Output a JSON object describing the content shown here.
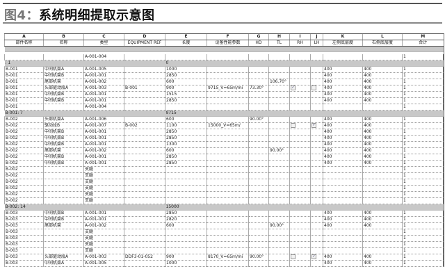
{
  "title": {
    "prefix": "图4：",
    "text": "系统明细提取示意图"
  },
  "columns": {
    "letters": [
      "A",
      "B",
      "C",
      "D",
      "E",
      "F",
      "G",
      "H",
      "I",
      "J",
      "K",
      "L",
      "M"
    ],
    "names": [
      "部件名称",
      "名称",
      "类型",
      "EQUIPMENT REF",
      "长度",
      "设备性能参数",
      "HD",
      "TL",
      "RH",
      "LH",
      "左侧底层度",
      "右侧底层度",
      "合计"
    ]
  },
  "sections": [
    {
      "type": "band",
      "label": "",
      "value": ""
    },
    {
      "type": "row",
      "cells": [
        "",
        "",
        "A-001-004",
        "",
        "",
        "",
        "",
        "",
        "",
        "",
        "",
        "",
        "1"
      ]
    },
    {
      "type": "band",
      "label": ": 1",
      "value": "0"
    },
    {
      "type": "row",
      "cells": [
        "B-001",
        "中间机架A",
        "A-001-005",
        "",
        "1000",
        "",
        "",
        "",
        "",
        "",
        "400",
        "400",
        "1"
      ]
    },
    {
      "type": "row",
      "cells": [
        "B-001",
        "中间机架B",
        "A-001-001",
        "",
        "2850",
        "",
        "",
        "",
        "",
        "",
        "400",
        "400",
        "1"
      ]
    },
    {
      "type": "row",
      "cells": [
        "B-001",
        "尾部机架",
        "A-001-002",
        "",
        "600",
        "",
        "",
        "106.70°",
        "",
        "",
        "400",
        "400",
        "1"
      ]
    },
    {
      "type": "row",
      "cells": [
        "B-001",
        "头部驱动段A",
        "A-001-003",
        "B-001",
        "900",
        "9715_V=65m/mi",
        "73.30°",
        "",
        "checked",
        "unchecked",
        "400",
        "400",
        "1"
      ]
    },
    {
      "type": "row",
      "cells": [
        "B-001",
        "中间机架B",
        "A-001-001",
        "",
        "1515",
        "",
        "",
        "",
        "",
        "",
        "400",
        "400",
        "1"
      ]
    },
    {
      "type": "row",
      "cells": [
        "B-001",
        "中间机架B",
        "A-001-001",
        "",
        "2850",
        "",
        "",
        "",
        "",
        "",
        "400",
        "400",
        "1"
      ]
    },
    {
      "type": "row",
      "cells": [
        "B-001",
        "",
        "A-001-004",
        "",
        "",
        "",
        "",
        "",
        "",
        "",
        "",
        "",
        "1"
      ]
    },
    {
      "type": "band",
      "label": "B-001: 7",
      "value": "9715"
    },
    {
      "type": "row",
      "cells": [
        "B-002",
        "头部机架A",
        "A-001-006",
        "",
        "600",
        "",
        "90.00°",
        "",
        "",
        "",
        "400",
        "400",
        "1"
      ]
    },
    {
      "type": "row",
      "cells": [
        "B-002",
        "驱动段B",
        "A-001-007",
        "B-002",
        "1100",
        "15000_V=65m/",
        "",
        "",
        "unchecked",
        "checked",
        "400",
        "400",
        "1"
      ]
    },
    {
      "type": "row",
      "cells": [
        "B-002",
        "中间机架B",
        "A-001-001",
        "",
        "2850",
        "",
        "",
        "",
        "",
        "",
        "400",
        "400",
        "1"
      ]
    },
    {
      "type": "row",
      "cells": [
        "B-002",
        "中间机架B",
        "A-001-001",
        "",
        "2850",
        "",
        "",
        "",
        "",
        "",
        "400",
        "400",
        "1"
      ]
    },
    {
      "type": "row",
      "cells": [
        "B-002",
        "中间机架B",
        "A-001-001",
        "",
        "1300",
        "",
        "",
        "",
        "",
        "",
        "400",
        "400",
        "1"
      ]
    },
    {
      "type": "row",
      "cells": [
        "B-002",
        "尾部机架",
        "A-001-002",
        "",
        "600",
        "",
        "",
        "90.00°",
        "",
        "",
        "400",
        "400",
        "1"
      ]
    },
    {
      "type": "row",
      "cells": [
        "B-002",
        "中间机架B",
        "A-001-001",
        "",
        "2850",
        "",
        "",
        "",
        "",
        "",
        "400",
        "400",
        "1"
      ]
    },
    {
      "type": "row",
      "cells": [
        "B-002",
        "中间机架B",
        "A-001-001",
        "",
        "2850",
        "",
        "",
        "",
        "",
        "",
        "400",
        "400",
        "1"
      ]
    },
    {
      "type": "row",
      "cells": [
        "B-002",
        "",
        "支腿",
        "",
        "",
        "",
        "",
        "",
        "",
        "",
        "",
        "",
        "1"
      ]
    },
    {
      "type": "row",
      "cells": [
        "B-002",
        "",
        "支腿",
        "",
        "",
        "",
        "",
        "",
        "",
        "",
        "",
        "",
        "1"
      ]
    },
    {
      "type": "row",
      "cells": [
        "B-002",
        "",
        "支腿",
        "",
        "",
        "",
        "",
        "",
        "",
        "",
        "",
        "",
        "1"
      ]
    },
    {
      "type": "row",
      "cells": [
        "B-002",
        "",
        "支腿",
        "",
        "",
        "",
        "",
        "",
        "",
        "",
        "",
        "",
        "1"
      ]
    },
    {
      "type": "row",
      "cells": [
        "B-002",
        "",
        "支腿",
        "",
        "",
        "",
        "",
        "",
        "",
        "",
        "",
        "",
        "1"
      ]
    },
    {
      "type": "row",
      "cells": [
        "B-002",
        "",
        "支腿",
        "",
        "",
        "",
        "",
        "",
        "",
        "",
        "",
        "",
        "1"
      ]
    },
    {
      "type": "band",
      "label": "B-002: 14",
      "value": "15000"
    },
    {
      "type": "row",
      "cells": [
        "B-003",
        "中间机架B",
        "A-001-001",
        "",
        "2850",
        "",
        "",
        "",
        "",
        "",
        "400",
        "400",
        "1"
      ]
    },
    {
      "type": "row",
      "cells": [
        "B-003",
        "中间机架B",
        "A-001-001",
        "",
        "2820",
        "",
        "",
        "",
        "",
        "",
        "400",
        "400",
        "1"
      ]
    },
    {
      "type": "row",
      "cells": [
        "B-003",
        "尾部机架",
        "A-001-002",
        "",
        "600",
        "",
        "",
        "90.00°",
        "",
        "",
        "400",
        "400",
        "1"
      ]
    },
    {
      "type": "row",
      "cells": [
        "B-003",
        "",
        "支腿",
        "",
        "",
        "",
        "",
        "",
        "",
        "",
        "",
        "",
        "1"
      ]
    },
    {
      "type": "row",
      "cells": [
        "B-003",
        "",
        "支腿",
        "",
        "",
        "",
        "",
        "",
        "",
        "",
        "",
        "",
        "1"
      ]
    },
    {
      "type": "row",
      "cells": [
        "B-003",
        "",
        "支腿",
        "",
        "",
        "",
        "",
        "",
        "",
        "",
        "",
        "",
        "1"
      ]
    },
    {
      "type": "row",
      "cells": [
        "B-003",
        "",
        "支腿",
        "",
        "",
        "",
        "",
        "",
        "",
        "",
        "",
        "",
        "1"
      ]
    },
    {
      "type": "row",
      "cells": [
        "B-003",
        "头部驱动段A",
        "A-001-003",
        "DDF3-01-052",
        "900",
        "8170_V=65m/mi",
        "90.00°",
        "",
        "unchecked",
        "checked",
        "400",
        "400",
        "1"
      ]
    },
    {
      "type": "row",
      "cells": [
        "B-003",
        "中间机架A",
        "A-001-005",
        "",
        "1000",
        "",
        "",
        "",
        "",
        "",
        "400",
        "400",
        "1"
      ]
    }
  ]
}
